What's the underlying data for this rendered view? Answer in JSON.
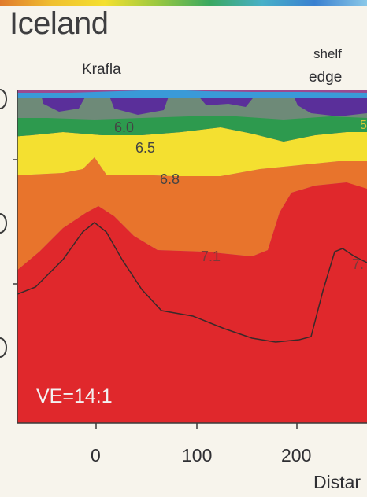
{
  "title": "Iceland",
  "location_labels": {
    "krafla": "Krafla",
    "shelf_line1": "shelf",
    "shelf_line2": "edge"
  },
  "layer_labels": [
    "6.0",
    "6.5",
    "6.8",
    "7.1",
    "7.",
    "5"
  ],
  "ve_label": "VE=14:1",
  "x_ticks": [
    "0",
    "100",
    "200"
  ],
  "x_axis_label": "Distar",
  "colors": {
    "water": "#3a9ad8",
    "layer_6_0": "#5a2f9a",
    "layer_6_5": "#2d9a4e",
    "layer_6_8": "#f4e030",
    "layer_7_0": "#e8742c",
    "layer_7_1": "#e0282c",
    "mantle": "#9a4a92",
    "grey_band": "#6e8a78"
  }
}
